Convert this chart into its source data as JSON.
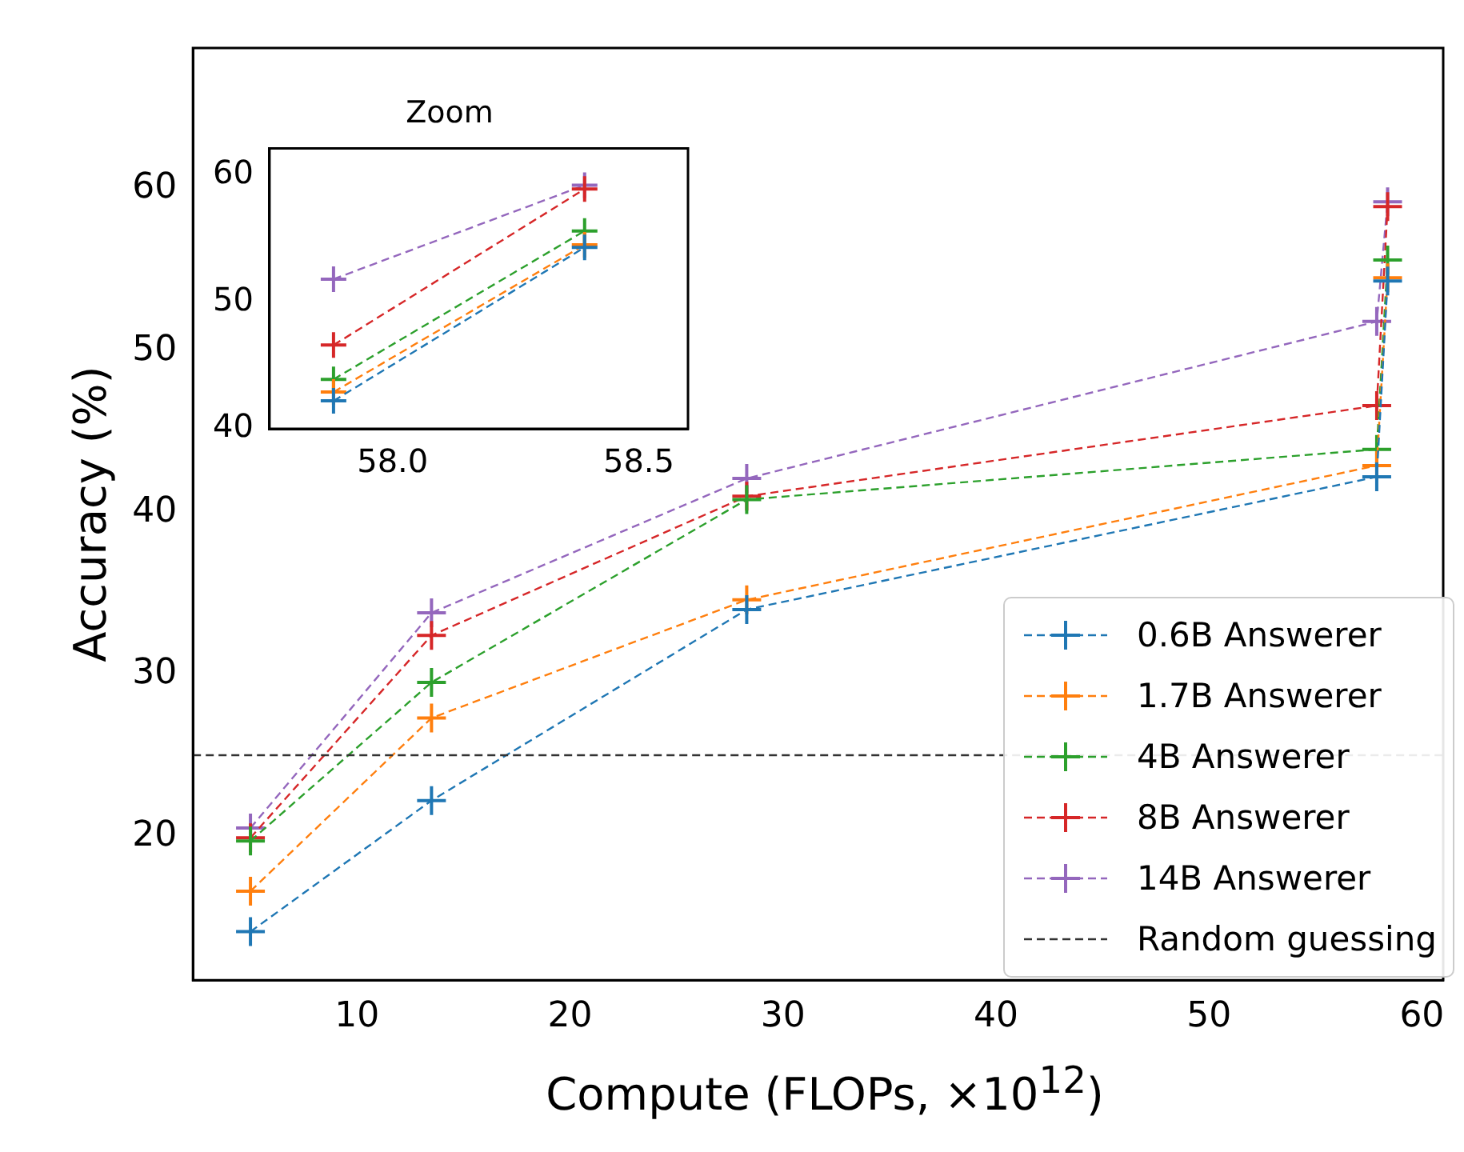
{
  "chart_data": [
    {
      "type": "line",
      "xlabel": "Compute (FLOPs, ×10$^{12}$)",
      "ylabel": "Accuracy (%)",
      "x": [
        5,
        13.5,
        28.3,
        57.88,
        58.39
      ],
      "xlim": [
        2.3,
        61
      ],
      "xticks": [
        10,
        20,
        30,
        40,
        50,
        60
      ],
      "ylim": [
        11.1,
        68.7
      ],
      "yticks": [
        20,
        30,
        40,
        50,
        60
      ],
      "grid": false,
      "legend": "bottom right",
      "marker": "cross",
      "line_style": "dashed",
      "series": [
        {
          "name": "0.6B Answerer",
          "color": "#1f77b4",
          "values": [
            14.1,
            22.2,
            34.0,
            42.2,
            54.3
          ]
        },
        {
          "name": "1.7B Answerer",
          "color": "#ff7f0e",
          "values": [
            16.6,
            27.3,
            34.6,
            42.9,
            54.5
          ]
        },
        {
          "name": "4B Answerer",
          "color": "#2ca02c",
          "values": [
            19.7,
            29.5,
            40.8,
            43.9,
            55.6
          ]
        },
        {
          "name": "8B Answerer",
          "color": "#d62728",
          "values": [
            19.9,
            32.4,
            41.0,
            46.6,
            58.9
          ]
        },
        {
          "name": "14B Answerer",
          "color": "#9467bd",
          "values": [
            20.5,
            33.8,
            42.1,
            51.8,
            59.2
          ]
        }
      ],
      "ref_lines": [
        {
          "axis": "y",
          "value": 25,
          "label": "Random guessing",
          "color": "#333333",
          "line_style": "dashed"
        }
      ]
    },
    {
      "type": "line",
      "title": "Zoom",
      "x": [
        57.88,
        58.39
      ],
      "xlim": [
        57.75,
        58.6
      ],
      "xticks": [
        {
          "value": 58,
          "label": "58.0"
        },
        {
          "value": 58.5,
          "label": "58.5"
        }
      ],
      "ylim": [
        40,
        62.1
      ],
      "yticks": [
        40,
        50,
        60
      ],
      "grid": false,
      "marker": "cross",
      "line_style": "dashed",
      "series": [
        {
          "color": "#1f77b4",
          "values": [
            42.2,
            54.3
          ]
        },
        {
          "color": "#ff7f0e",
          "values": [
            42.9,
            54.5
          ]
        },
        {
          "color": "#2ca02c",
          "values": [
            43.9,
            55.6
          ]
        },
        {
          "color": "#d62728",
          "values": [
            46.6,
            58.9
          ]
        },
        {
          "color": "#9467bd",
          "values": [
            51.8,
            59.2
          ]
        }
      ]
    }
  ]
}
